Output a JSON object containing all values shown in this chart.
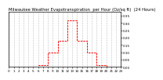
{
  "title": "Milwaukee Weather Evapotranspiration  per Hour (Oz/sq ft)  (24 Hours)",
  "hours": [
    0,
    1,
    2,
    3,
    4,
    5,
    6,
    7,
    8,
    9,
    10,
    11,
    12,
    13,
    14,
    15,
    16,
    17,
    18,
    19,
    20,
    21,
    22,
    23
  ],
  "values": [
    0.0,
    0.0,
    0.0,
    0.0,
    0.0,
    0.0,
    0.01,
    0.01,
    0.1,
    0.1,
    0.18,
    0.18,
    0.32,
    0.32,
    0.18,
    0.18,
    0.1,
    0.1,
    0.01,
    0.01,
    0.0,
    0.0,
    0.0,
    0.0
  ],
  "line_color": "#ff0000",
  "bg_color": "#ffffff",
  "grid_color": "#888888",
  "title_fontsize": 3.8,
  "tick_fontsize": 3.0,
  "ylim": [
    0,
    0.38
  ],
  "yticks": [
    0.0,
    0.05,
    0.1,
    0.15,
    0.2,
    0.25,
    0.3,
    0.35
  ],
  "ylabel_fmt": "%.2f"
}
